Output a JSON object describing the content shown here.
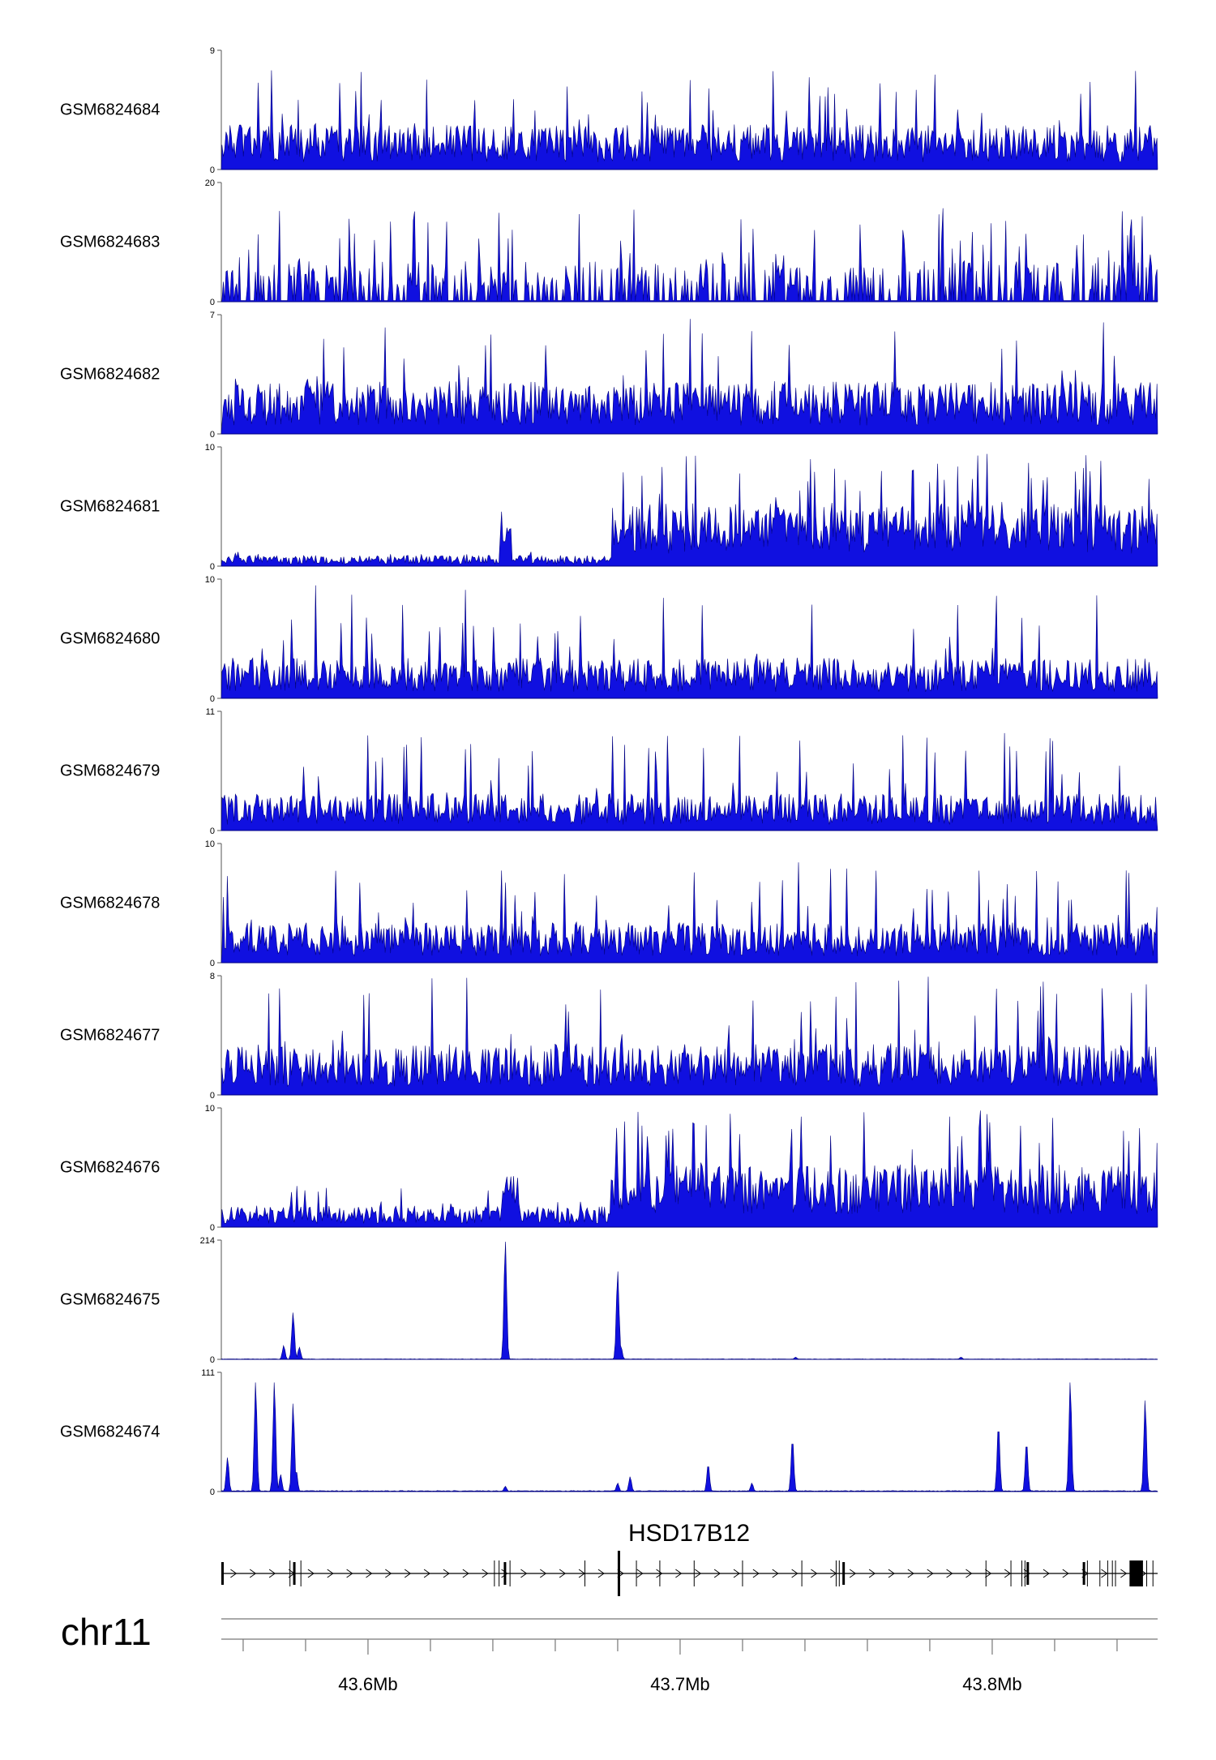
{
  "chart_data": {
    "type": "area",
    "chromosome": "chr11",
    "xlim": [
      43553000,
      43853000
    ],
    "colors": {
      "signal": "#1010e0",
      "signal_edge": "#000080",
      "axis": "#555555"
    },
    "tracks": [
      {
        "name": "GSM6824684",
        "ymax": 9,
        "pattern": "noise",
        "noise_mean": 2.2,
        "noise_peak": 7.5
      },
      {
        "name": "GSM6824683",
        "ymax": 20,
        "pattern": "sparse",
        "noise_mean": 4.0,
        "noise_peak": 16
      },
      {
        "name": "GSM6824682",
        "ymax": 7,
        "pattern": "noise",
        "noise_mean": 2.0,
        "noise_peak": 6.8
      },
      {
        "name": "GSM6824681",
        "ymax": 10,
        "pattern": "step",
        "noise_mean": 0.5,
        "noise_peak": 1.2,
        "high_mean": 3.5,
        "high_peak": 9.5,
        "step_start": 43678000,
        "bump": [
          43642000,
          43646000
        ]
      },
      {
        "name": "GSM6824680",
        "ymax": 10,
        "pattern": "noise",
        "noise_mean": 2.2,
        "noise_peak": 9.5
      },
      {
        "name": "GSM6824679",
        "ymax": 11,
        "pattern": "noise",
        "noise_mean": 2.2,
        "noise_peak": 9.0
      },
      {
        "name": "GSM6824678",
        "ymax": 10,
        "pattern": "noise",
        "noise_mean": 2.2,
        "noise_peak": 8.5
      },
      {
        "name": "GSM6824677",
        "ymax": 8,
        "pattern": "noise",
        "noise_mean": 2.2,
        "noise_peak": 8.0
      },
      {
        "name": "GSM6824676",
        "ymax": 10,
        "pattern": "step",
        "noise_mean": 1.0,
        "noise_peak": 3.5,
        "high_mean": 3.5,
        "high_peak": 9.8,
        "step_start": 43677000,
        "bump": [
          43643000,
          43648000
        ]
      },
      {
        "name": "GSM6824675",
        "ymax": 214,
        "pattern": "peaks",
        "baseline": 0.6,
        "peaks": [
          [
            43644000,
            214
          ],
          [
            43680000,
            160
          ],
          [
            43576000,
            85
          ],
          [
            43573000,
            25
          ],
          [
            43578000,
            22
          ],
          [
            43681000,
            25
          ],
          [
            43737000,
            4
          ],
          [
            43790000,
            4
          ]
        ]
      },
      {
        "name": "GSM6824674",
        "ymax": 111,
        "pattern": "peaks",
        "baseline": 0.6,
        "peaks": [
          [
            43564000,
            103
          ],
          [
            43570000,
            103
          ],
          [
            43576000,
            83
          ],
          [
            43555000,
            32
          ],
          [
            43572000,
            16
          ],
          [
            43577000,
            20
          ],
          [
            43736000,
            50
          ],
          [
            43802000,
            63
          ],
          [
            43811000,
            47
          ],
          [
            43825000,
            103
          ],
          [
            43849000,
            86
          ],
          [
            43709000,
            26
          ],
          [
            43680000,
            8
          ],
          [
            43684000,
            14
          ],
          [
            43723000,
            8
          ],
          [
            43644000,
            5
          ]
        ]
      }
    ],
    "gene": {
      "name": "HSD17B12",
      "start": 43553000,
      "end": 43853000,
      "strand": "+",
      "exons": [
        [
          43553000,
          43553600
        ],
        [
          43576000,
          43576700
        ],
        [
          43643500,
          43644000
        ],
        [
          43680000,
          43680700
        ],
        [
          43752000,
          43752600
        ],
        [
          43811000,
          43811500
        ],
        [
          43829000,
          43829700
        ],
        [
          43844000,
          43848300
        ]
      ],
      "small_marks": [
        43575000,
        43578500,
        43640500,
        43642000,
        43645500,
        43669500,
        43686000,
        43693500,
        43704500,
        43720000,
        43739000,
        43750000,
        43751000,
        43798000,
        43806000,
        43809500,
        43810500,
        43830500,
        43834500,
        43837000,
        43838500,
        43839500,
        43849500,
        43851500
      ]
    },
    "axis": {
      "ticks": [
        43600000,
        43700000,
        43800000
      ],
      "tick_labels": [
        "43.6Mb",
        "43.7Mb",
        "43.8Mb"
      ],
      "minor_ticks": [
        43560000,
        43580000,
        43620000,
        43640000,
        43660000,
        43680000,
        43720000,
        43740000,
        43760000,
        43780000,
        43820000,
        43840000
      ]
    }
  }
}
